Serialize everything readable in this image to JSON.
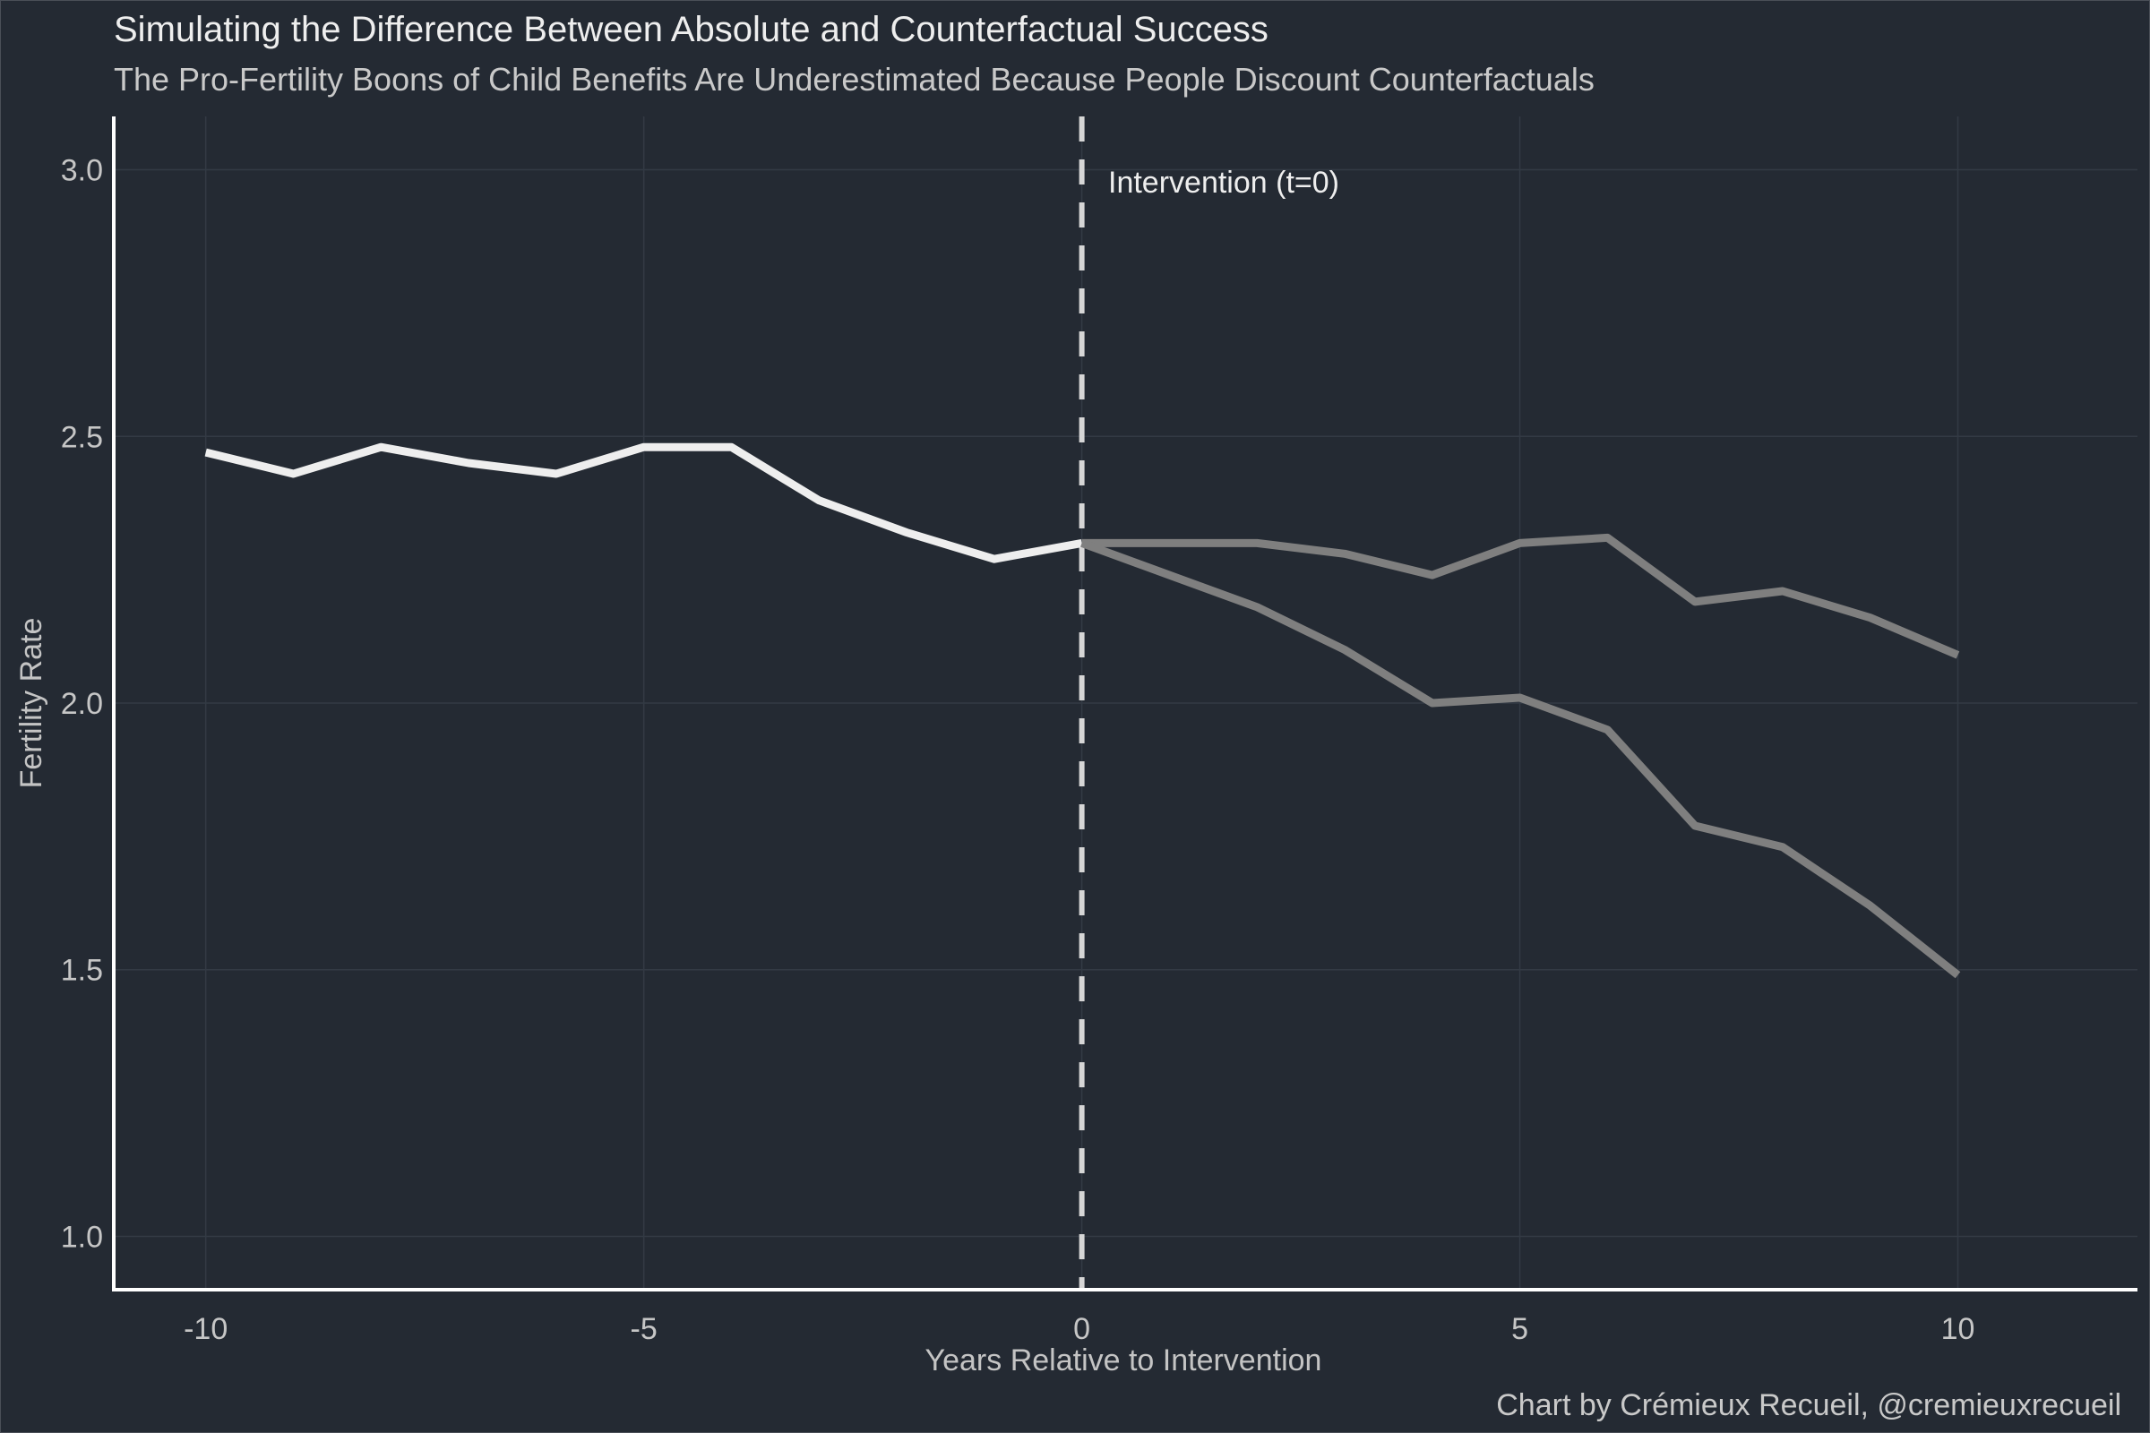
{
  "chart_data": {
    "type": "line",
    "title": "Simulating the Difference Between Absolute and Counterfactual Success",
    "subtitle": "The Pro-Fertility Boons of Child Benefits Are Underestimated Because People Discount Counterfactuals",
    "xlabel": "Years Relative to Intervention",
    "ylabel": "Fertility Rate",
    "caption": "Chart by Crémieux Recueil, @cremieuxrecueil",
    "xlim": [
      -11.05,
      12.05
    ],
    "ylim": [
      0.9,
      3.1
    ],
    "x_ticks": [
      -10,
      -5,
      0,
      5,
      10
    ],
    "x_tick_labels": [
      "-10",
      "-5",
      "0",
      "5",
      "10"
    ],
    "y_ticks": [
      1.0,
      1.5,
      2.0,
      2.5,
      3.0
    ],
    "y_tick_labels": [
      "1.0",
      "1.5",
      "2.0",
      "2.5",
      "3.0"
    ],
    "grid": true,
    "legend": "none",
    "vline": {
      "x": 0,
      "label": "Intervention (t=0)",
      "style": "dashed",
      "color": "#d6d6d6"
    },
    "series": [
      {
        "color": "#eeeeee",
        "x": [
          -10,
          -9,
          -8,
          -7,
          -6,
          -5,
          -4,
          -3,
          -2,
          -1,
          0
        ],
        "y": [
          2.47,
          2.43,
          2.48,
          2.45,
          2.43,
          2.48,
          2.48,
          2.38,
          2.32,
          2.27,
          2.3
        ]
      },
      {
        "color": "#7f7f7f",
        "x": [
          0,
          1,
          2,
          3,
          4,
          5,
          6,
          7,
          8,
          9,
          10
        ],
        "y": [
          2.3,
          2.3,
          2.3,
          2.28,
          2.24,
          2.3,
          2.31,
          2.19,
          2.21,
          2.16,
          2.09
        ]
      },
      {
        "color": "#7f7f7f",
        "x": [
          0,
          1,
          2,
          3,
          4,
          5,
          6,
          7,
          8,
          9,
          10
        ],
        "y": [
          2.3,
          2.24,
          2.18,
          2.1,
          2.0,
          2.01,
          1.95,
          1.77,
          1.73,
          1.62,
          1.49
        ]
      }
    ]
  },
  "colors": {
    "background": "#242a33",
    "grid": "#333a44",
    "axis_line": "#ffffff"
  }
}
